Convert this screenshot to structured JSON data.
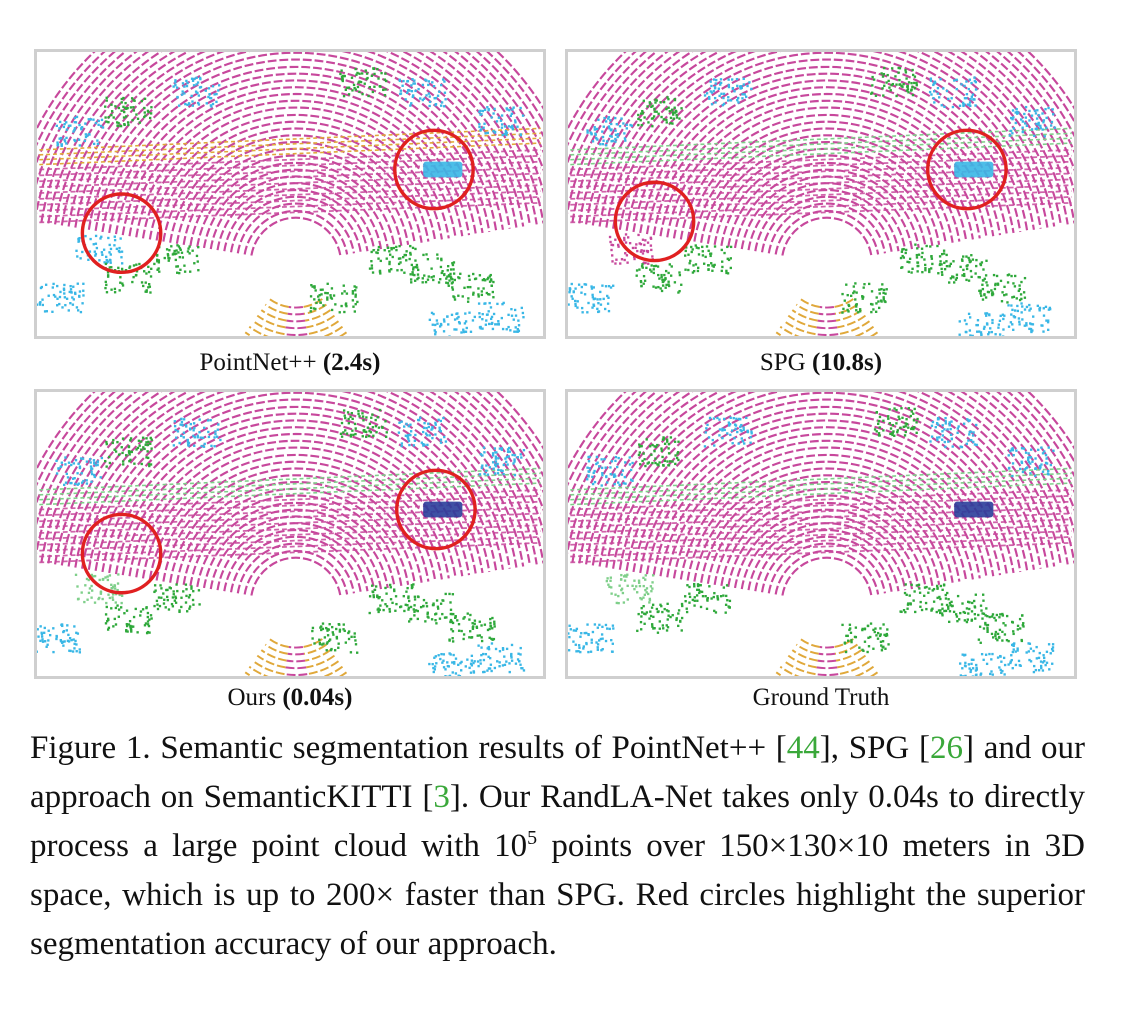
{
  "panels": [
    {
      "name": "PointNet++",
      "time": "(2.4s)"
    },
    {
      "name": "SPG",
      "time": "(10.8s)"
    },
    {
      "name": "Ours",
      "time": "(0.04s)"
    },
    {
      "name": "Ground Truth",
      "time": ""
    }
  ],
  "caption": {
    "label": "Figure 1.",
    "t1": "Semantic segmentation results of PointNet++",
    "c1": "44",
    "t2": ", SPG",
    "c2": "26",
    "t3": "and our approach on SemanticKITTI",
    "c3": "3",
    "t4": ". Our RandLA-Net takes only 0.04s to directly process a large point cloud with 10",
    "sup": "5",
    "t5": "points over 150×130×10 meters in 3D space, which is up to 200× faster than SPG. Red circles highlight the superior segmentation accuracy of our approach."
  },
  "colors": {
    "road": "#c7489c",
    "sidewalk": "#e0a83a",
    "vegetation": "#2ea83a",
    "terrain": "#7fcf8a",
    "building": "#39b7e6",
    "car": "#2a3d9a",
    "highlight": "#e02020",
    "citation": "#3aa83a",
    "border": "#cfcfcf"
  }
}
